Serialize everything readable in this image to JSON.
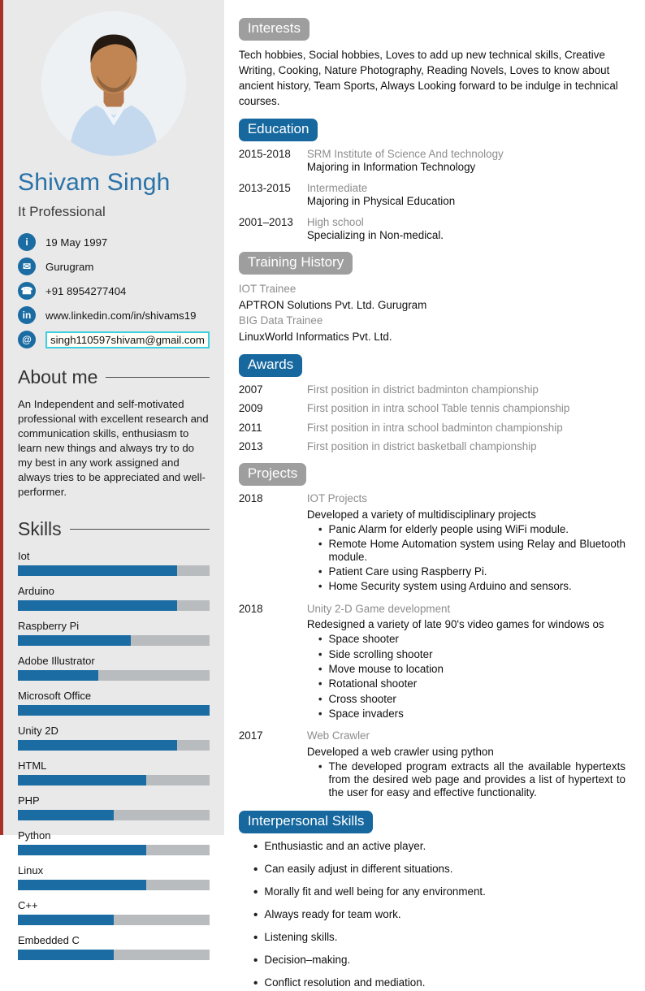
{
  "colors": {
    "accent_blue": "#16689f",
    "badge_gray": "#9e9e9e",
    "name_blue": "#2a72a8",
    "skill_fill": "#1b6ca3",
    "skill_track": "#b9bcbe",
    "email_box_border": "#3ccfe0",
    "page_edge_red": "#a93226"
  },
  "sidebar": {
    "name": "Shivam Singh",
    "title": "It Professional",
    "contact": {
      "items": [
        {
          "icon": "info-icon",
          "glyph": "i",
          "text": "19 May 1997"
        },
        {
          "icon": "mail-icon",
          "glyph": "✉",
          "text": "Gurugram"
        },
        {
          "icon": "phone-icon",
          "glyph": "☎",
          "text": "+91 8954277404"
        },
        {
          "icon": "linkedin-icon",
          "glyph": "in",
          "text": "www.linkedin.com/in/shivams19"
        },
        {
          "icon": "at-icon",
          "glyph": "@",
          "text": "singh110597shivam@gmail.com"
        }
      ]
    },
    "about": {
      "heading": "About me",
      "text": "An Independent and self-motivated professional with excellent research and communication skills, enthusiasm to learn new things and always try to do my best in any work assigned and always tries to be appreciated and well-performer."
    },
    "skills": {
      "heading": "Skills",
      "items": [
        {
          "label": "Iot",
          "level_pct": 83
        },
        {
          "label": "Arduino",
          "level_pct": 83
        },
        {
          "label": "Raspberry Pi",
          "level_pct": 59
        },
        {
          "label": "Adobe Illustrator",
          "level_pct": 42
        },
        {
          "label": "Microsoft Office",
          "level_pct": 100
        },
        {
          "label": "Unity 2D",
          "level_pct": 83
        },
        {
          "label": "HTML",
          "level_pct": 67
        },
        {
          "label": "PHP",
          "level_pct": 50
        },
        {
          "label": "Python",
          "level_pct": 67
        },
        {
          "label": "Linux",
          "level_pct": 67
        },
        {
          "label": "C++",
          "level_pct": 50
        },
        {
          "label": "Embedded C",
          "level_pct": 50
        }
      ]
    }
  },
  "main": {
    "interests": {
      "heading": "Interests",
      "text": "Tech hobbies, Social hobbies, Loves to add up new technical skills, Creative Writing, Cooking, Nature Photography, Reading Novels, Loves to know about ancient history, Team Sports, Always Looking forward to be indulge in technical courses."
    },
    "education": {
      "heading": "Education",
      "entries": [
        {
          "years": "2015-2018",
          "title": "SRM Institute of Science And technology",
          "subtitle": "Majoring in Information Technology"
        },
        {
          "years": "2013-2015",
          "title": "Intermediate",
          "subtitle": "Majoring in Physical Education"
        },
        {
          "years": "2001–2013",
          "title": "High school",
          "subtitle": "Specializing in Non-medical."
        }
      ]
    },
    "training": {
      "heading": "Training History",
      "lines": [
        {
          "text": "IOT Trainee",
          "tone": "muted"
        },
        {
          "text": "APTRON Solutions Pvt. Ltd. Gurugram",
          "tone": "strong"
        },
        {
          "text": "BIG Data Trainee",
          "tone": "muted"
        },
        {
          "text": "LinuxWorld Informatics Pvt. Ltd.",
          "tone": "strong"
        }
      ]
    },
    "awards": {
      "heading": "Awards",
      "entries": [
        {
          "year": "2007",
          "text": "First position in district badminton championship"
        },
        {
          "year": "2009",
          "text": "First position in intra school Table tennis championship"
        },
        {
          "year": "2011",
          "text": "First position in intra school badminton championship"
        },
        {
          "year": "2013",
          "text": "First position in district basketball championship"
        }
      ]
    },
    "projects": {
      "heading": "Projects",
      "entries": [
        {
          "year": "2018",
          "title": "IOT Projects",
          "description": "Developed a variety of multidisciplinary projects",
          "bullets": [
            "Panic Alarm for elderly people using WiFi module.",
            "Remote Home Automation system using Relay and Bluetooth module.",
            "Patient Care using Raspberry Pi.",
            "Home Security system using Arduino and sensors."
          ]
        },
        {
          "year": "2018",
          "title": "Unity 2-D Game development",
          "description": "Redesigned a variety of late 90's video games for windows os",
          "bullets": [
            "Space shooter",
            "Side scrolling shooter",
            "Move mouse to location",
            "Rotational shooter",
            "Cross shooter",
            "Space invaders"
          ]
        },
        {
          "year": "2017",
          "title": "Web Crawler",
          "description": "Developed a web crawler using python",
          "bullets": [
            "The developed program extracts all the available hypertexts from the desired web page and provides a list of hypertext to the user for easy and effective functionality."
          ]
        }
      ]
    },
    "interpersonal": {
      "heading": "Interpersonal Skills",
      "bullets": [
        "Enthusiastic and an active player.",
        "Can easily adjust in different situations.",
        "Morally fit and well being for any environment.",
        "Always ready for team work.",
        "Listening skills.",
        "Decision–making.",
        "Conflict resolution and mediation."
      ]
    }
  }
}
